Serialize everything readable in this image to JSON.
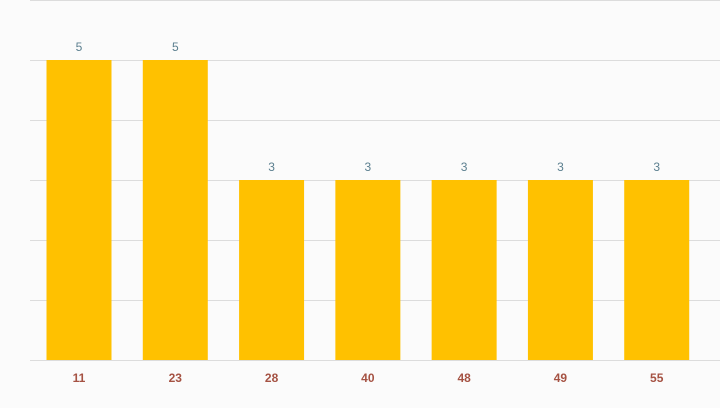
{
  "chart_data": {
    "type": "bar",
    "categories": [
      "11",
      "23",
      "28",
      "40",
      "48",
      "49",
      "55"
    ],
    "values": [
      5,
      5,
      3,
      3,
      3,
      3,
      3
    ],
    "ylim": [
      0,
      6
    ],
    "grid": true,
    "data_labels": true,
    "colors": {
      "bar": "#ffc100",
      "grid": "#dcdcdc",
      "value_label": "#5b7f8f",
      "tick_label": "#a55243",
      "background": "#fbfbfb"
    }
  }
}
